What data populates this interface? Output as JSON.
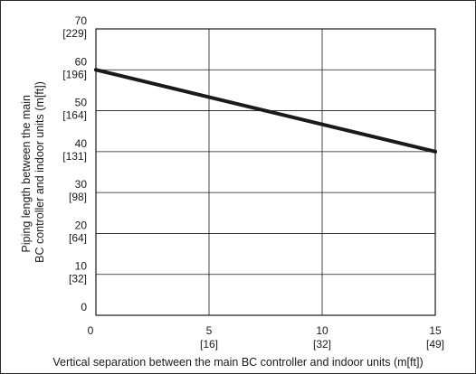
{
  "chart_data": {
    "type": "line",
    "title": "",
    "xlabel": "Vertical separation between the main BC controller and indoor units (m[ft])",
    "ylabel_lines": [
      "Piping length between the main",
      "BC controller and indoor units (m[ft])"
    ],
    "xlim": [
      0,
      15
    ],
    "ylim": [
      0,
      70
    ],
    "grid": true,
    "x_ticks": [
      {
        "value": 0,
        "label": "0",
        "sublabel": ""
      },
      {
        "value": 5,
        "label": "5",
        "sublabel": "[16]"
      },
      {
        "value": 10,
        "label": "10",
        "sublabel": "[32]"
      },
      {
        "value": 15,
        "label": "15",
        "sublabel": "[49]"
      }
    ],
    "y_ticks": [
      {
        "value": 0,
        "label": "0",
        "sublabel": ""
      },
      {
        "value": 10,
        "label": "10",
        "sublabel": "[32]"
      },
      {
        "value": 20,
        "label": "20",
        "sublabel": "[64]"
      },
      {
        "value": 30,
        "label": "30",
        "sublabel": "[98]"
      },
      {
        "value": 40,
        "label": "40",
        "sublabel": "[131]"
      },
      {
        "value": 50,
        "label": "50",
        "sublabel": "[164]"
      },
      {
        "value": 60,
        "label": "60",
        "sublabel": "[196]"
      },
      {
        "value": 70,
        "label": "70",
        "sublabel": "[229]"
      }
    ],
    "series": [
      {
        "x": [
          0,
          15
        ],
        "y": [
          60,
          40
        ],
        "color": "#1a1a1a"
      }
    ]
  }
}
